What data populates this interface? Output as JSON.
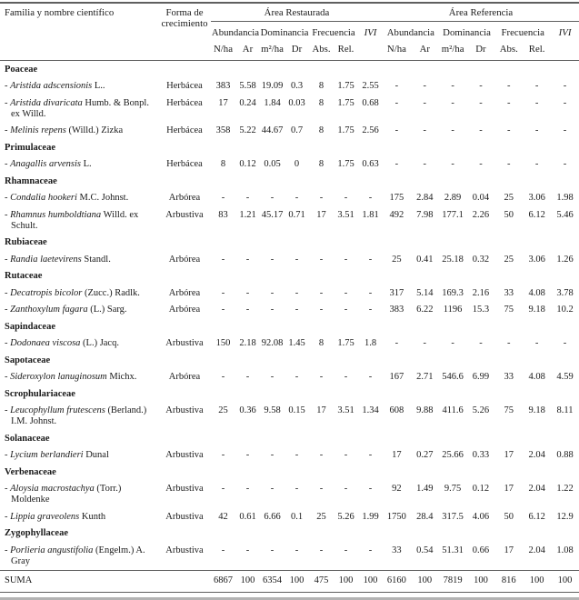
{
  "table": {
    "header": {
      "col_family": "Familia y nombre científico",
      "col_growth_form": "Forma de crecimiento",
      "group_restored": "Área Restaurada",
      "group_reference": "Área Referencia",
      "metric_abundance": "Abundancia",
      "metric_dominance": "Dominancia",
      "metric_frequency": "Frecuencia",
      "metric_ivi": "IVI",
      "unit_nha": "N/ha",
      "unit_ar": "Ar",
      "unit_m2ha": "m²/ha",
      "unit_dr": "Dr",
      "unit_abs": "Abs.",
      "unit_rel": "Rel."
    },
    "species_bullet": "-",
    "rows": [
      {
        "type": "family",
        "name": "Poaceae"
      },
      {
        "type": "species",
        "name": "Aristida adscensionis",
        "author": "L..",
        "growth_form": "Herbácea",
        "values": [
          "383",
          "5.58",
          "19.09",
          "0.3",
          "8",
          "1.75",
          "2.55",
          "-",
          "-",
          "-",
          "-",
          "-",
          "-",
          "-"
        ]
      },
      {
        "type": "species",
        "name": "Aristida divaricata",
        "author": "Humb. & Bonpl. ex Willd.",
        "growth_form": "Herbácea",
        "values": [
          "17",
          "0.24",
          "1.84",
          "0.03",
          "8",
          "1.75",
          "0.68",
          "-",
          "-",
          "-",
          "-",
          "-",
          "-",
          "-"
        ]
      },
      {
        "type": "species",
        "name": "Melinis repens",
        "author": "(Willd.) Zizka",
        "growth_form": "Herbácea",
        "values": [
          "358",
          "5.22",
          "44.67",
          "0.7",
          "8",
          "1.75",
          "2.56",
          "-",
          "-",
          "-",
          "-",
          "-",
          "-",
          "-"
        ]
      },
      {
        "type": "family",
        "name": "Primulaceae"
      },
      {
        "type": "species",
        "name": "Anagallis arvensis",
        "author": "L.",
        "growth_form": "Herbácea",
        "values": [
          "8",
          "0.12",
          "0.05",
          "0",
          "8",
          "1.75",
          "0.63",
          "-",
          "-",
          "-",
          "-",
          "-",
          "-",
          "-"
        ]
      },
      {
        "type": "family",
        "name": "Rhamnaceae"
      },
      {
        "type": "species",
        "name": "Condalia hookeri",
        "author": "M.C. Johnst.",
        "growth_form": "Arbórea",
        "values": [
          "-",
          "-",
          "-",
          "-",
          "-",
          "-",
          "-",
          "175",
          "2.84",
          "2.89",
          "0.04",
          "25",
          "3.06",
          "1.98"
        ]
      },
      {
        "type": "species",
        "name": "Rhamnus humboldtiana",
        "author": "Willd. ex Schult.",
        "growth_form": "Arbustiva",
        "values": [
          "83",
          "1.21",
          "45.17",
          "0.71",
          "17",
          "3.51",
          "1.81",
          "492",
          "7.98",
          "177.1",
          "2.26",
          "50",
          "6.12",
          "5.46"
        ]
      },
      {
        "type": "family",
        "name": "Rubiaceae"
      },
      {
        "type": "species",
        "name": "Randia laetevirens",
        "author": "Standl.",
        "growth_form": "Arbórea",
        "values": [
          "-",
          "-",
          "-",
          "-",
          "-",
          "-",
          "-",
          "25",
          "0.41",
          "25.18",
          "0.32",
          "25",
          "3.06",
          "1.26"
        ]
      },
      {
        "type": "family",
        "name": "Rutaceae"
      },
      {
        "type": "species",
        "name": "Decatropis bicolor",
        "author": "(Zucc.) Radlk.",
        "growth_form": "Arbórea",
        "values": [
          "-",
          "-",
          "-",
          "-",
          "-",
          "-",
          "-",
          "317",
          "5.14",
          "169.3",
          "2.16",
          "33",
          "4.08",
          "3.78"
        ]
      },
      {
        "type": "species",
        "name": "Zanthoxylum fagara",
        "author": "(L.) Sarg.",
        "growth_form": "Arbórea",
        "values": [
          "-",
          "-",
          "-",
          "-",
          "-",
          "-",
          "-",
          "383",
          "6.22",
          "1196",
          "15.3",
          "75",
          "9.18",
          "10.2"
        ]
      },
      {
        "type": "family",
        "name": "Sapindaceae"
      },
      {
        "type": "species",
        "name": "Dodonaea viscosa",
        "author": "(L.) Jacq.",
        "growth_form": "Arbustiva",
        "values": [
          "150",
          "2.18",
          "92.08",
          "1.45",
          "8",
          "1.75",
          "1.8",
          "-",
          "-",
          "-",
          "-",
          "-",
          "-",
          "-"
        ]
      },
      {
        "type": "family",
        "name": "Sapotaceae"
      },
      {
        "type": "species",
        "name": "Sideroxylon lanuginosum",
        "author": "Michx.",
        "growth_form": "Arbórea",
        "values": [
          "-",
          "-",
          "-",
          "-",
          "-",
          "-",
          "-",
          "167",
          "2.71",
          "546.6",
          "6.99",
          "33",
          "4.08",
          "4.59"
        ]
      },
      {
        "type": "family",
        "name": "Scrophulariaceae"
      },
      {
        "type": "species",
        "name": "Leucophyllum frutescens",
        "author": "(Berland.) I.M. Johnst.",
        "growth_form": "Arbustiva",
        "values": [
          "25",
          "0.36",
          "9.58",
          "0.15",
          "17",
          "3.51",
          "1.34",
          "608",
          "9.88",
          "411.6",
          "5.26",
          "75",
          "9.18",
          "8.11"
        ]
      },
      {
        "type": "family",
        "name": "Solanaceae"
      },
      {
        "type": "species",
        "name": "Lycium berlandieri",
        "author": "Dunal",
        "growth_form": "Arbustiva",
        "values": [
          "-",
          "-",
          "-",
          "-",
          "-",
          "-",
          "-",
          "17",
          "0.27",
          "25.66",
          "0.33",
          "17",
          "2.04",
          "0.88"
        ]
      },
      {
        "type": "family",
        "name": "Verbenaceae"
      },
      {
        "type": "species",
        "name": "Aloysia macrostachya",
        "author": "(Torr.) Moldenke",
        "growth_form": "Arbustiva",
        "values": [
          "-",
          "-",
          "-",
          "-",
          "-",
          "-",
          "-",
          "92",
          "1.49",
          "9.75",
          "0.12",
          "17",
          "2.04",
          "1.22"
        ]
      },
      {
        "type": "species",
        "name": "Lippia graveolens",
        "author": "Kunth",
        "growth_form": "Arbustiva",
        "values": [
          "42",
          "0.61",
          "6.66",
          "0.1",
          "25",
          "5.26",
          "1.99",
          "1750",
          "28.4",
          "317.5",
          "4.06",
          "50",
          "6.12",
          "12.9"
        ]
      },
      {
        "type": "family",
        "name": "Zygophyllaceae"
      },
      {
        "type": "species",
        "name": "Porlieria angustifolia",
        "author": "(Engelm.) A. Gray",
        "growth_form": "Arbustiva",
        "values": [
          "-",
          "-",
          "-",
          "-",
          "-",
          "-",
          "-",
          "33",
          "0.54",
          "51.31",
          "0.66",
          "17",
          "2.04",
          "1.08"
        ]
      }
    ],
    "footer": {
      "label": "SUMA",
      "values": [
        "6867",
        "100",
        "6354",
        "100",
        "475",
        "100",
        "100",
        "6160",
        "100",
        "7819",
        "100",
        "816",
        "100",
        "100"
      ]
    }
  }
}
